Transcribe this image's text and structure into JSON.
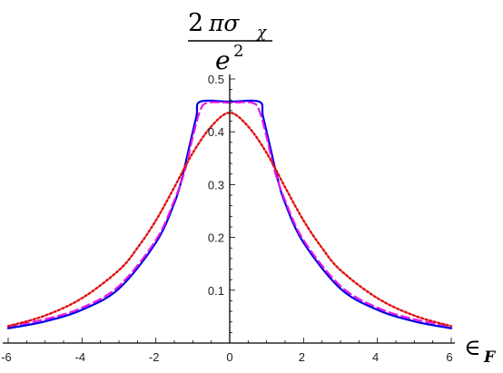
{
  "chart_data": {
    "type": "line",
    "title": "",
    "ylabel": {
      "numerator_number": "2",
      "numerator_symbol": "πσ",
      "numerator_subscript": "χ",
      "denominator_base": "e",
      "denominator_exponent": "2"
    },
    "xlabel": {
      "symbol": "∈",
      "subscript": "F"
    },
    "xlim": [
      -6,
      6
    ],
    "ylim": [
      0,
      0.5
    ],
    "x_ticks": [
      -6,
      -4,
      -2,
      0,
      2,
      4,
      6
    ],
    "x_tick_labels": [
      "-6",
      "-4",
      "-2",
      "0",
      "2",
      "4",
      "6"
    ],
    "y_ticks": [
      0.1,
      0.2,
      0.3,
      0.4,
      0.5
    ],
    "y_tick_labels": [
      "0.1",
      "0.2",
      "0.3",
      "0.4",
      "0.5"
    ],
    "grid": false,
    "legend": "none",
    "series": [
      {
        "color": "#0000e6",
        "dash": "solid",
        "x": [
          -6,
          -5,
          -4,
          -3,
          -2,
          -1.5,
          -1.3,
          -1.1,
          -0.9,
          -0.8,
          0,
          0.8,
          0.9,
          1.1,
          1.3,
          1.5,
          2,
          3,
          4,
          5,
          6
        ],
        "y": [
          0.028,
          0.041,
          0.063,
          0.103,
          0.19,
          0.265,
          0.31,
          0.37,
          0.43,
          0.457,
          0.457,
          0.457,
          0.43,
          0.37,
          0.31,
          0.265,
          0.19,
          0.103,
          0.063,
          0.041,
          0.028
        ]
      },
      {
        "color": "#e619e6",
        "dash": "dashed",
        "x": [
          -6,
          -5,
          -4,
          -3,
          -2,
          -1.5,
          -1.2,
          -1.0,
          -0.8,
          -0.6,
          0,
          0.6,
          0.8,
          1.0,
          1.2,
          1.5,
          2,
          3,
          4,
          5,
          6
        ],
        "y": [
          0.032,
          0.045,
          0.067,
          0.108,
          0.195,
          0.27,
          0.33,
          0.39,
          0.44,
          0.455,
          0.455,
          0.455,
          0.44,
          0.39,
          0.33,
          0.27,
          0.195,
          0.108,
          0.067,
          0.045,
          0.032
        ]
      },
      {
        "color": "#e01010",
        "dash": "dotted",
        "x": [
          -6,
          -5,
          -4,
          -3,
          -2.5,
          -2,
          -1.5,
          -1,
          -0.5,
          0,
          0.5,
          1,
          1.5,
          2,
          2.5,
          3,
          4,
          5,
          6
        ],
        "y": [
          0.032,
          0.052,
          0.085,
          0.138,
          0.18,
          0.232,
          0.295,
          0.36,
          0.41,
          0.436,
          0.41,
          0.36,
          0.295,
          0.232,
          0.18,
          0.138,
          0.085,
          0.052,
          0.032
        ]
      }
    ]
  }
}
